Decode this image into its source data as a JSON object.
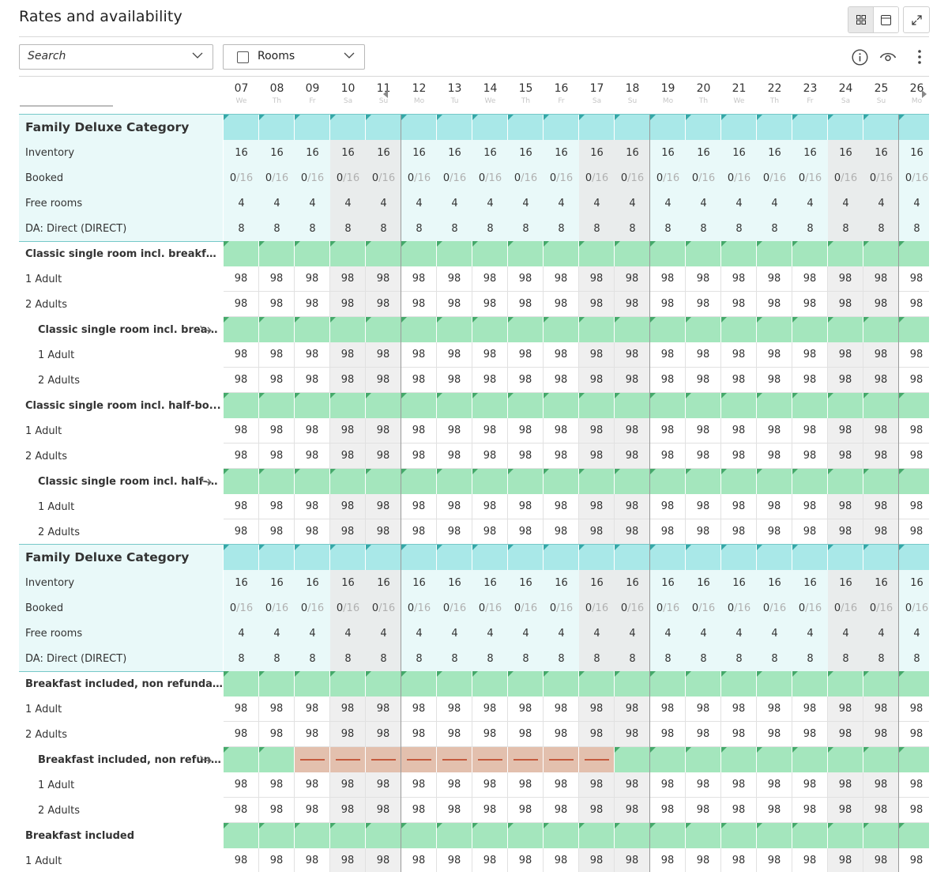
{
  "header": {
    "title": "Rates and availability",
    "view_grid_icon": "grid-view-icon",
    "view_calendar_icon": "calendar-view-icon",
    "expand_icon": "expand-icon"
  },
  "toolbar": {
    "search_placeholder": "Search",
    "rooms_label": "Rooms",
    "info_icon": "info-icon",
    "visibility_icon": "eye-icon",
    "more_icon": "more-vertical-icon"
  },
  "dates": [
    {
      "day": "07",
      "weekday": "We",
      "weekend": false
    },
    {
      "day": "08",
      "weekday": "Th",
      "weekend": false
    },
    {
      "day": "09",
      "weekday": "Fr",
      "weekend": false
    },
    {
      "day": "10",
      "weekday": "Sa",
      "weekend": true
    },
    {
      "day": "11",
      "weekday": "Su",
      "weekend": true
    },
    {
      "day": "12",
      "weekday": "Mo",
      "weekend": false
    },
    {
      "day": "13",
      "weekday": "Tu",
      "weekend": false
    },
    {
      "day": "14",
      "weekday": "We",
      "weekend": false
    },
    {
      "day": "15",
      "weekday": "Th",
      "weekend": false
    },
    {
      "day": "16",
      "weekday": "Fr",
      "weekend": false
    },
    {
      "day": "17",
      "weekday": "Sa",
      "weekend": true
    },
    {
      "day": "18",
      "weekday": "Su",
      "weekend": true
    },
    {
      "day": "19",
      "weekday": "Mo",
      "weekend": false
    },
    {
      "day": "20",
      "weekday": "Th",
      "weekend": false
    },
    {
      "day": "21",
      "weekday": "We",
      "weekend": false
    },
    {
      "day": "22",
      "weekday": "Th",
      "weekend": false
    },
    {
      "day": "23",
      "weekday": "Fr",
      "weekend": false
    },
    {
      "day": "24",
      "weekday": "Sa",
      "weekend": true
    },
    {
      "day": "25",
      "weekday": "Su",
      "weekend": true
    },
    {
      "day": "26",
      "weekday": "Mo",
      "weekend": false
    }
  ],
  "rows": [
    {
      "type": "cat-header",
      "label": "Family Deluxe Category",
      "bar": "teal"
    },
    {
      "type": "cat-row",
      "label": "Inventory",
      "value": "16"
    },
    {
      "type": "booked",
      "label": "Booked",
      "booked": "0",
      "total": "/16"
    },
    {
      "type": "cat-row",
      "label": "Free rooms",
      "value": "4"
    },
    {
      "type": "cat-row",
      "label": "DA: Direct (DIRECT)",
      "value": "8"
    },
    {
      "type": "rate-header",
      "label": "Classic single room incl. breakfast",
      "bar": "green",
      "linked": false
    },
    {
      "type": "rate-row",
      "label": "1 Adult",
      "value": "98"
    },
    {
      "type": "rate-row",
      "label": "2 Adults",
      "value": "98"
    },
    {
      "type": "rate-header",
      "label": "Classic single room incl. breakfast",
      "bar": "green",
      "linked": true
    },
    {
      "type": "rate-row",
      "label": "1 Adult",
      "value": "98",
      "indent": true
    },
    {
      "type": "rate-row",
      "label": "2 Adults",
      "value": "98",
      "indent": true
    },
    {
      "type": "rate-header",
      "label": "Classic single room incl. half-bo...",
      "bar": "green",
      "linked": false
    },
    {
      "type": "rate-row",
      "label": "1 Adult",
      "value": "98"
    },
    {
      "type": "rate-row",
      "label": "2 Adults",
      "value": "98"
    },
    {
      "type": "rate-header",
      "label": "Classic single room incl. half-bo...",
      "bar": "green",
      "linked": true
    },
    {
      "type": "rate-row",
      "label": "1 Adult",
      "value": "98",
      "indent": true
    },
    {
      "type": "rate-row",
      "label": "2 Adults",
      "value": "98",
      "indent": true
    },
    {
      "type": "cat-header",
      "label": "Family Deluxe Category",
      "bar": "teal"
    },
    {
      "type": "cat-row",
      "label": "Inventory",
      "value": "16"
    },
    {
      "type": "booked",
      "label": "Booked",
      "booked": "0",
      "total": "/16"
    },
    {
      "type": "cat-row",
      "label": "Free rooms",
      "value": "4"
    },
    {
      "type": "cat-row",
      "label": "DA: Direct (DIRECT)",
      "value": "8"
    },
    {
      "type": "rate-header",
      "label": "Breakfast included, non refunda...",
      "bar": "green",
      "linked": false
    },
    {
      "type": "rate-row",
      "label": "1 Adult",
      "value": "98"
    },
    {
      "type": "rate-row",
      "label": "2 Adults",
      "value": "98"
    },
    {
      "type": "rate-header",
      "label": "Breakfast included, non refunda...",
      "bar": "green",
      "linked": true,
      "closed": [
        2,
        3,
        4,
        5,
        6,
        7,
        8,
        9,
        10
      ]
    },
    {
      "type": "rate-row",
      "label": "1 Adult",
      "value": "98",
      "indent": true
    },
    {
      "type": "rate-row",
      "label": "2 Adults",
      "value": "98",
      "indent": true
    },
    {
      "type": "rate-header",
      "label": "Breakfast included",
      "bar": "green",
      "linked": false
    },
    {
      "type": "rate-row",
      "label": "1 Adult",
      "value": "98"
    }
  ],
  "colors": {
    "category_bg": "#e9f9f9",
    "category_bar": "#a9e8e8",
    "rate_bar": "#a4e6bd",
    "closed_bar": "#e3c0ae",
    "closed_dash": "#c55a3e",
    "weekend_cell": "#efefef"
  }
}
